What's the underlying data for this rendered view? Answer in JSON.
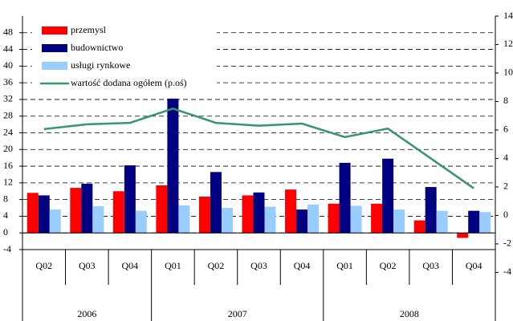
{
  "chart_data": {
    "type": "bar",
    "categories": [
      "Q02",
      "Q03",
      "Q04",
      "Q01",
      "Q02",
      "Q03",
      "Q04",
      "Q01",
      "Q02",
      "Q03",
      "Q04"
    ],
    "year_labels": [
      "2006",
      null,
      null,
      "2007",
      null,
      null,
      null,
      "2008",
      null,
      null,
      null
    ],
    "series": [
      {
        "name": "przemysl",
        "color": "#ff0000",
        "values": [
          9.6,
          10.8,
          10.0,
          11.4,
          8.7,
          9.0,
          10.4,
          7.0,
          7.0,
          3.0,
          -1.2
        ]
      },
      {
        "name": "budownictwo",
        "color": "#000080",
        "values": [
          9.0,
          11.8,
          16.2,
          32.2,
          14.6,
          9.7,
          5.6,
          16.8,
          17.8,
          11.0,
          5.3
        ]
      },
      {
        "name": "usługi rynkowe",
        "color": "#99ccff",
        "values": [
          5.6,
          6.4,
          5.3,
          6.6,
          6.0,
          6.3,
          6.8,
          6.5,
          5.6,
          5.3,
          5.0
        ]
      },
      {
        "name": "wartość dodana ogółem (p.oś)",
        "color": "#339966",
        "type": "line",
        "axis": "y2",
        "values": [
          6.06,
          6.4,
          6.5,
          7.5,
          6.5,
          6.3,
          6.45,
          5.5,
          6.1,
          4.0,
          1.9
        ]
      }
    ],
    "ylim": [
      -4,
      52
    ],
    "yticks": [
      -4,
      0,
      4,
      8,
      12,
      16,
      20,
      24,
      28,
      32,
      36,
      40,
      44,
      48
    ],
    "y2lim": [
      -2.4,
      14
    ],
    "y2ticks": [
      -4,
      -2,
      0,
      2,
      4,
      6,
      8,
      10,
      12,
      14
    ],
    "grid": true,
    "legend": "top-left"
  }
}
